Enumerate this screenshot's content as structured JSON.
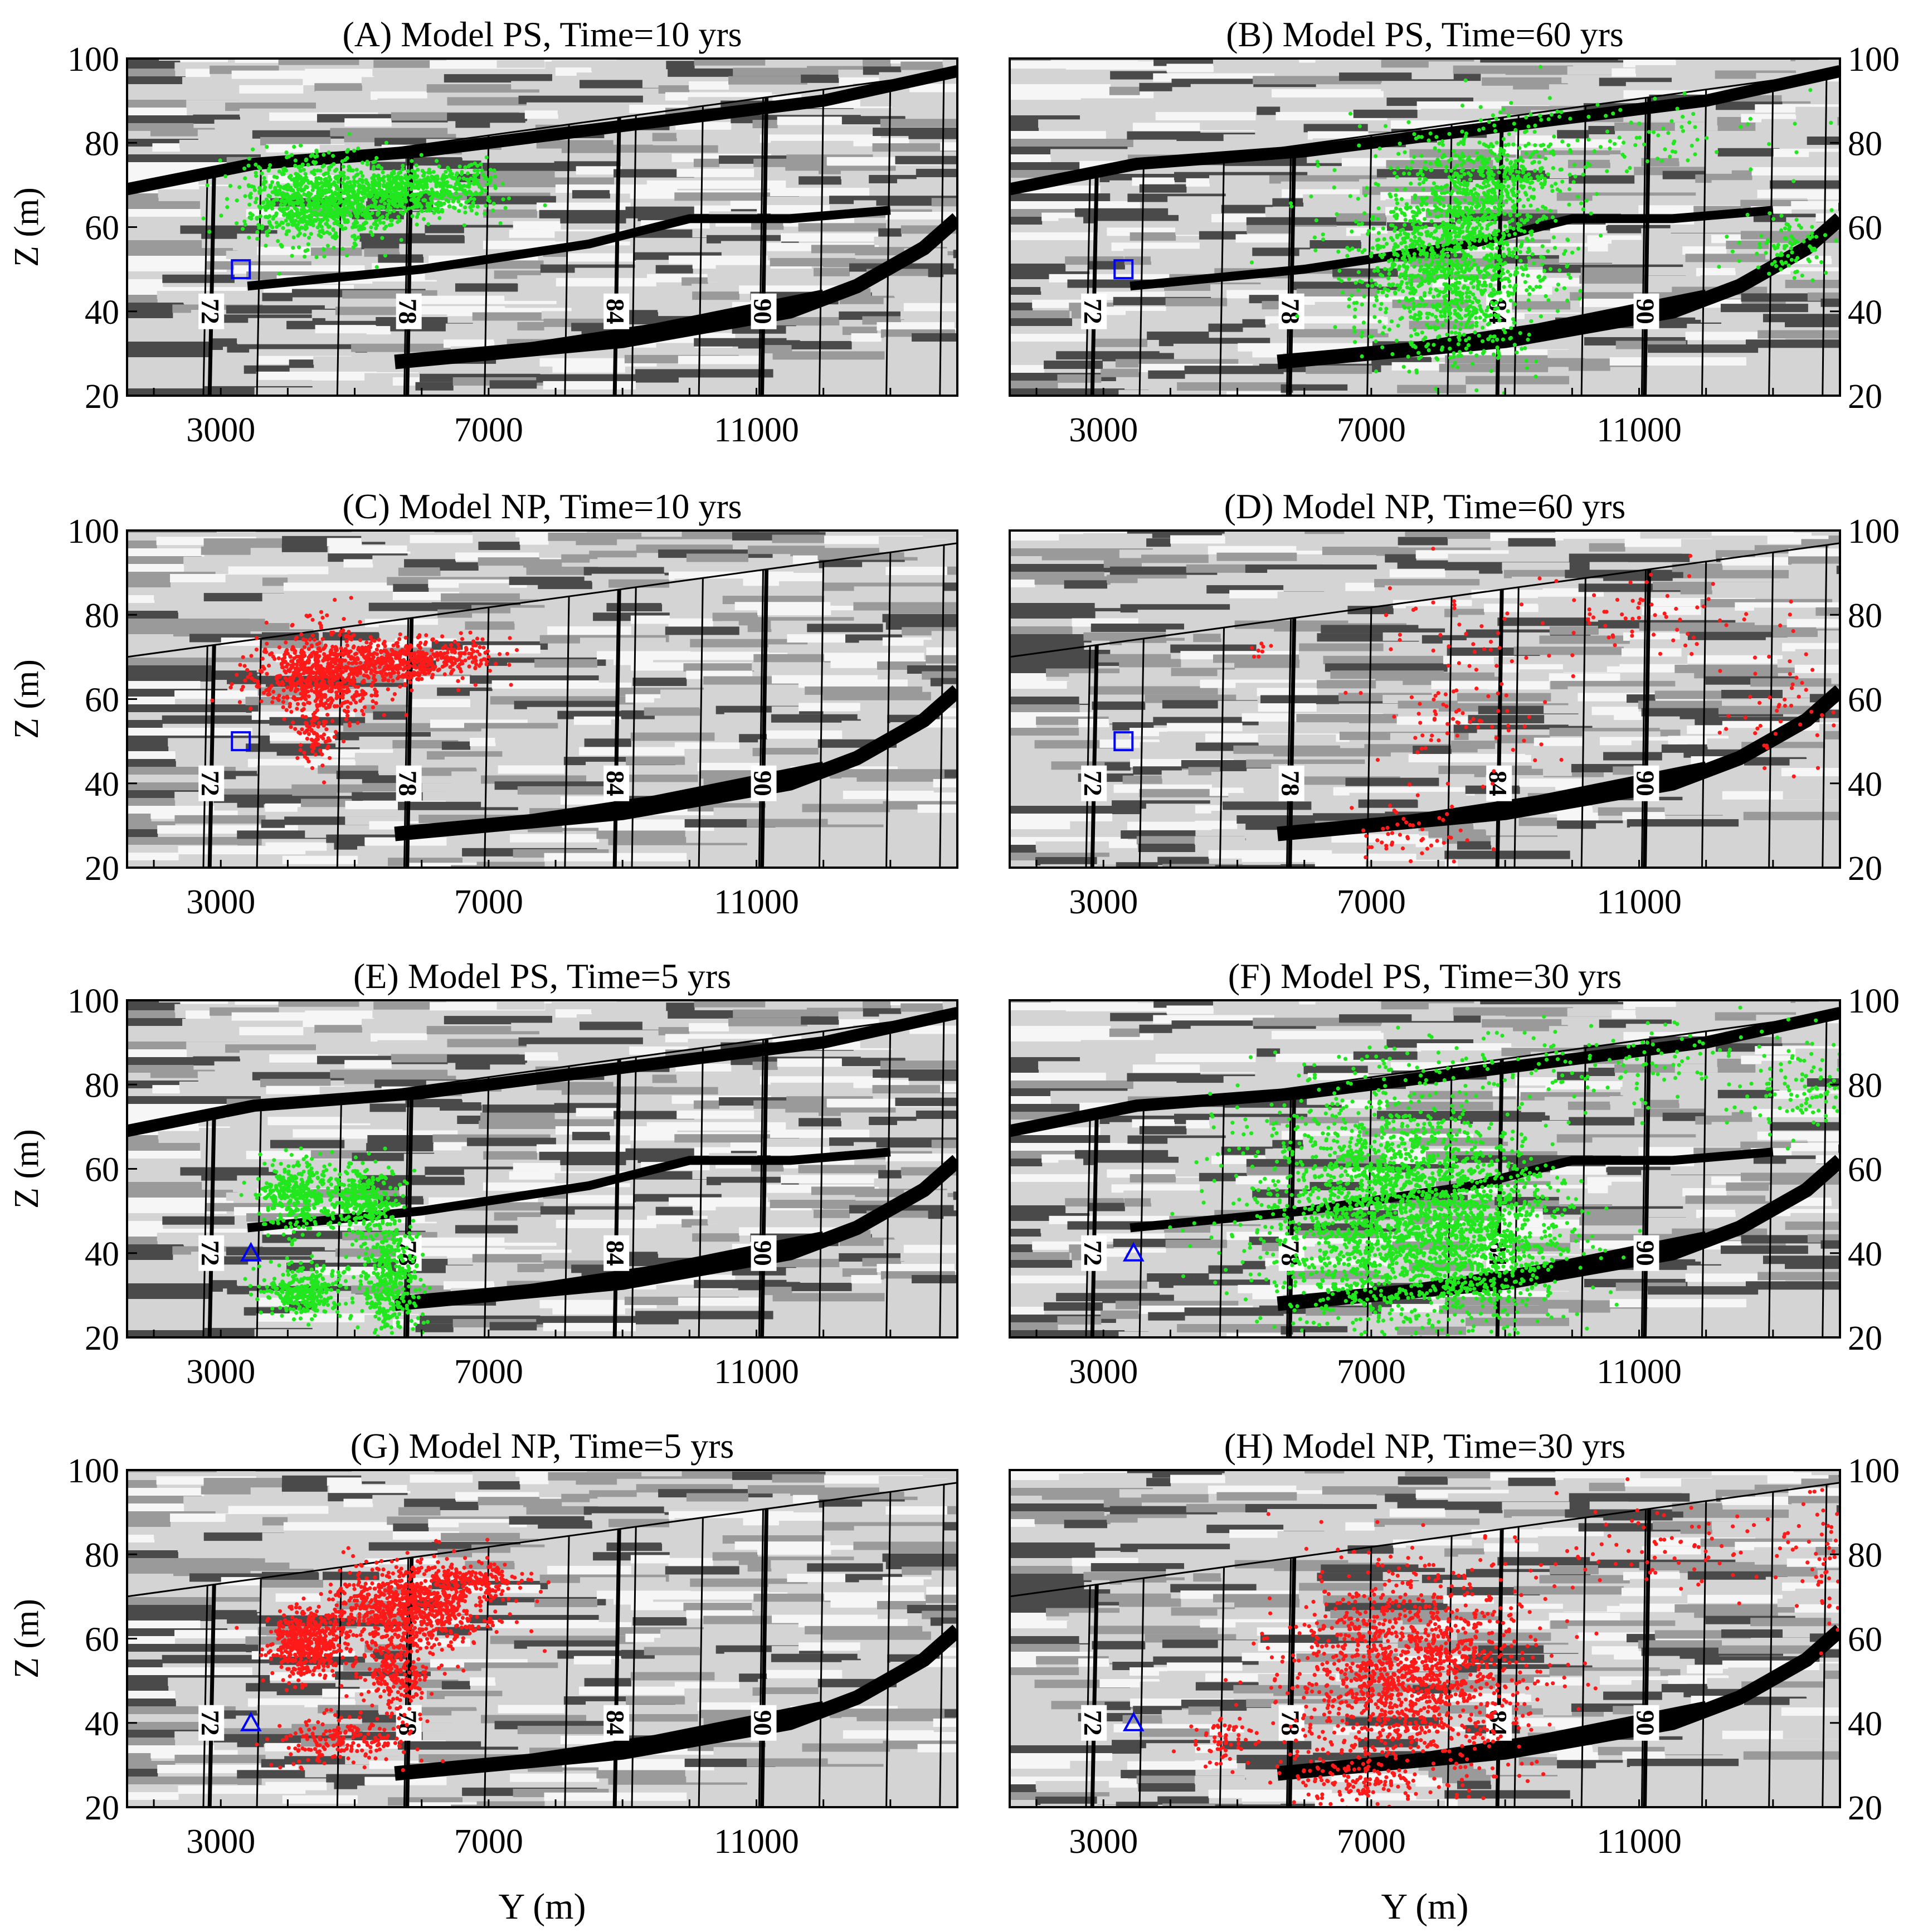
{
  "colors": {
    "ps_particles": "#22e61e",
    "np_particles": "#ff1a1a",
    "marker": "#0000ff",
    "layer_black": "#000000",
    "layer_dark": "#4a4a4a",
    "layer_mid": "#9a9a9a",
    "layer_light": "#d4d4d4",
    "layer_white": "#f6f6f6"
  },
  "shared_axes": {
    "xlabel": "Y (m)",
    "ylabel": "Z (m)",
    "x_ticks": [
      "3000",
      "7000",
      "11000"
    ],
    "y_ticks": [
      "20",
      "40",
      "60",
      "80",
      "100"
    ],
    "xlim": [
      1600,
      14000
    ],
    "ylim": [
      20,
      100
    ]
  },
  "transect_labels": [
    "72",
    "78",
    "84",
    "90"
  ],
  "chart_data": [
    {
      "type": "scatter",
      "title": "(A) Model PS, Time=10  yrs",
      "model": "PS",
      "time_yrs": 10,
      "marker": "square",
      "ylabel_side": "left",
      "series": [
        {
          "color": "#22e61e",
          "clusters": [
            {
              "cx": 4400,
              "cy": 66,
              "sx": 550,
              "sy": 5,
              "n": 900
            },
            {
              "cx": 5800,
              "cy": 68,
              "sx": 600,
              "sy": 3,
              "n": 550
            },
            {
              "cx": 6500,
              "cy": 72,
              "sx": 350,
              "sy": 2,
              "n": 80
            }
          ]
        }
      ]
    },
    {
      "type": "scatter",
      "title": "(B) Model PS, Time=60  yrs",
      "model": "PS",
      "time_yrs": 60,
      "marker": "square",
      "ylabel_side": "right",
      "series": [
        {
          "color": "#22e61e",
          "clusters": [
            {
              "cx": 8200,
              "cy": 52,
              "sx": 700,
              "sy": 12,
              "n": 1400
            },
            {
              "cx": 8900,
              "cy": 72,
              "sx": 500,
              "sy": 6,
              "n": 350
            },
            {
              "cx": 11000,
              "cy": 82,
              "sx": 1800,
              "sy": 5,
              "n": 110
            },
            {
              "cx": 13200,
              "cy": 55,
              "sx": 400,
              "sy": 4,
              "n": 90
            }
          ]
        }
      ]
    },
    {
      "type": "scatter",
      "title": "(C) Model NP, Time=10 yrs",
      "model": "NP",
      "time_yrs": 10,
      "marker": "square",
      "ylabel_side": "left",
      "series": [
        {
          "color": "#ff1a1a",
          "clusters": [
            {
              "cx": 4500,
              "cy": 66,
              "sx": 450,
              "sy": 5,
              "n": 700
            },
            {
              "cx": 5700,
              "cy": 69,
              "sx": 550,
              "sy": 2.5,
              "n": 420
            },
            {
              "cx": 4400,
              "cy": 51,
              "sx": 150,
              "sy": 4,
              "n": 80
            },
            {
              "cx": 6700,
              "cy": 71,
              "sx": 300,
              "sy": 2,
              "n": 60
            }
          ]
        }
      ]
    },
    {
      "type": "scatter",
      "title": "(D) Model NP, Time=60 yrs",
      "model": "NP",
      "time_yrs": 60,
      "marker": "square",
      "ylabel_side": "right",
      "series": [
        {
          "color": "#ff1a1a",
          "clusters": [
            {
              "cx": 8400,
              "cy": 60,
              "sx": 700,
              "sy": 14,
              "n": 110
            },
            {
              "cx": 7600,
              "cy": 28,
              "sx": 500,
              "sy": 3,
              "n": 45
            },
            {
              "cx": 11200,
              "cy": 80,
              "sx": 900,
              "sy": 5,
              "n": 60
            },
            {
              "cx": 13200,
              "cy": 58,
              "sx": 500,
              "sy": 8,
              "n": 50
            },
            {
              "cx": 5300,
              "cy": 72,
              "sx": 80,
              "sy": 1,
              "n": 8
            }
          ]
        }
      ]
    },
    {
      "type": "scatter",
      "title": "(E) Model PS, Time=5 yrs",
      "model": "PS",
      "time_yrs": 5,
      "marker": "triangle",
      "ylabel_side": "left",
      "series": [
        {
          "color": "#22e61e",
          "clusters": [
            {
              "cx": 4100,
              "cy": 54,
              "sx": 250,
              "sy": 4,
              "n": 350
            },
            {
              "cx": 5100,
              "cy": 53,
              "sx": 300,
              "sy": 4,
              "n": 350
            },
            {
              "cx": 4200,
              "cy": 31,
              "sx": 300,
              "sy": 3,
              "n": 320
            },
            {
              "cx": 5500,
              "cy": 33,
              "sx": 250,
              "sy": 7,
              "n": 420
            }
          ]
        }
      ]
    },
    {
      "type": "scatter",
      "title": "(F) Model PS, Time=30 yrs",
      "model": "PS",
      "time_yrs": 30,
      "marker": "triangle",
      "ylabel_side": "right",
      "series": [
        {
          "color": "#22e61e",
          "clusters": [
            {
              "cx": 7300,
              "cy": 50,
              "sx": 1000,
              "sy": 14,
              "n": 2300
            },
            {
              "cx": 8800,
              "cy": 42,
              "sx": 600,
              "sy": 10,
              "n": 600
            },
            {
              "cx": 10800,
              "cy": 85,
              "sx": 1800,
              "sy": 5,
              "n": 160
            },
            {
              "cx": 13500,
              "cy": 78,
              "sx": 400,
              "sy": 5,
              "n": 100
            }
          ]
        }
      ]
    },
    {
      "type": "scatter",
      "title": "(G) Model NP, Time=5 yrs",
      "model": "NP",
      "time_yrs": 5,
      "marker": "triangle",
      "ylabel_side": "left",
      "series": [
        {
          "color": "#ff1a1a",
          "clusters": [
            {
              "cx": 4300,
              "cy": 59,
              "sx": 300,
              "sy": 4,
              "n": 500
            },
            {
              "cx": 5900,
              "cy": 68,
              "sx": 600,
              "sy": 5,
              "n": 900
            },
            {
              "cx": 5600,
              "cy": 52,
              "sx": 250,
              "sy": 5,
              "n": 250
            },
            {
              "cx": 4800,
              "cy": 36,
              "sx": 500,
              "sy": 3,
              "n": 200
            },
            {
              "cx": 6800,
              "cy": 74,
              "sx": 350,
              "sy": 2,
              "n": 150
            }
          ]
        }
      ]
    },
    {
      "type": "scatter",
      "title": "(H) Model NP, Time=30 yrs",
      "model": "NP",
      "time_yrs": 30,
      "marker": "triangle",
      "ylabel_side": "right",
      "series": [
        {
          "color": "#ff1a1a",
          "clusters": [
            {
              "cx": 7600,
              "cy": 52,
              "sx": 900,
              "sy": 12,
              "n": 1500
            },
            {
              "cx": 6800,
              "cy": 26,
              "sx": 500,
              "sy": 3,
              "n": 120
            },
            {
              "cx": 4800,
              "cy": 36,
              "sx": 250,
              "sy": 3,
              "n": 60
            },
            {
              "cx": 12000,
              "cy": 82,
              "sx": 1500,
              "sy": 6,
              "n": 100
            },
            {
              "cx": 13800,
              "cy": 80,
              "sx": 150,
              "sy": 8,
              "n": 40
            }
          ]
        }
      ]
    }
  ]
}
